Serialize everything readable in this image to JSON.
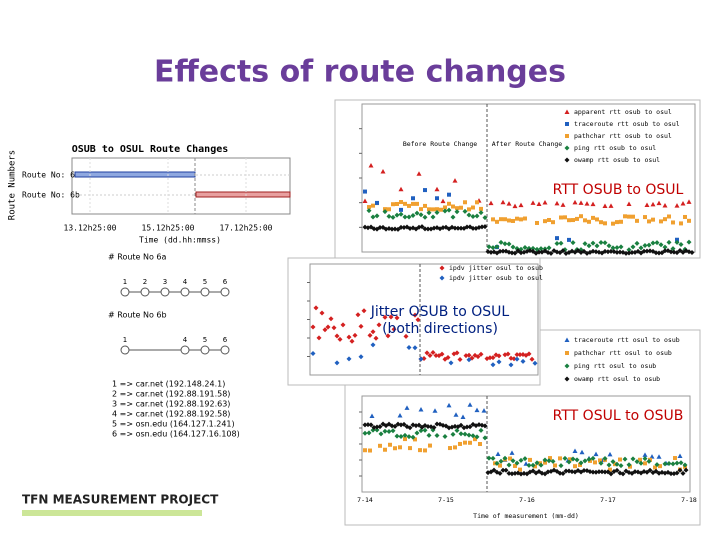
{
  "title": "Effects of route changes",
  "route_chart": {
    "title": "OSUB to OSUL Route Changes",
    "y_label": "Route Numbers",
    "routes": [
      "Route No: 6a",
      "Route No: 6b"
    ],
    "x_ticks": [
      "13.12h25:00",
      "15.12h25:00",
      "17.12h25:00"
    ],
    "x_label": "Time (dd.hh:mmss)"
  },
  "route_diagrams": [
    {
      "label": "# Route No 6a",
      "nodes": [
        "1",
        "2",
        "3",
        "4",
        "5",
        "6"
      ]
    },
    {
      "label": "# Route No 6b",
      "nodes": [
        "1",
        "4",
        "5",
        "6"
      ]
    }
  ],
  "hops": [
    "1 => car.net (192.148.24.1)",
    "2 => car.net (192.88.191.58)",
    "3 => car.net (192.88.192.63)",
    "4 => car.net (192.88.192.58)",
    "5 => osn.edu (164.127.1.241)",
    "6 => osn.edu (164.127.16.108)"
  ],
  "rtt_osub_osul": {
    "overlay": "RTT OSUB to OSUL",
    "legend": [
      "apparent rtt osub to osul",
      "traceroute rtt osub to osul",
      "pathchar rtt osub to osul",
      "ping rtt osub to osul",
      "owamp rtt osub to osul"
    ],
    "annotations": [
      "Before Route Change",
      "After Route Change"
    ]
  },
  "jitter": {
    "overlay_lines": [
      "Jitter OSUB to OSUL",
      "(both directions)"
    ],
    "legend": [
      "ipdv jitter osul to osub",
      "ipdv jitter osub to osul"
    ]
  },
  "rtt_osul_osub": {
    "overlay": "RTT OSUL to OSUB",
    "legend": [
      "traceroute rtt osul to osub",
      "pathchar rtt osul to osub",
      "ping rtt osul to osub",
      "owamp rtt osul to osub"
    ],
    "x_ticks": [
      "7-14",
      "7-15",
      "7-16",
      "7-17",
      "7-18"
    ],
    "x_label": "Time of measurement (mm-dd)"
  },
  "logo": "TFN MEASUREMENT PROJECT"
}
